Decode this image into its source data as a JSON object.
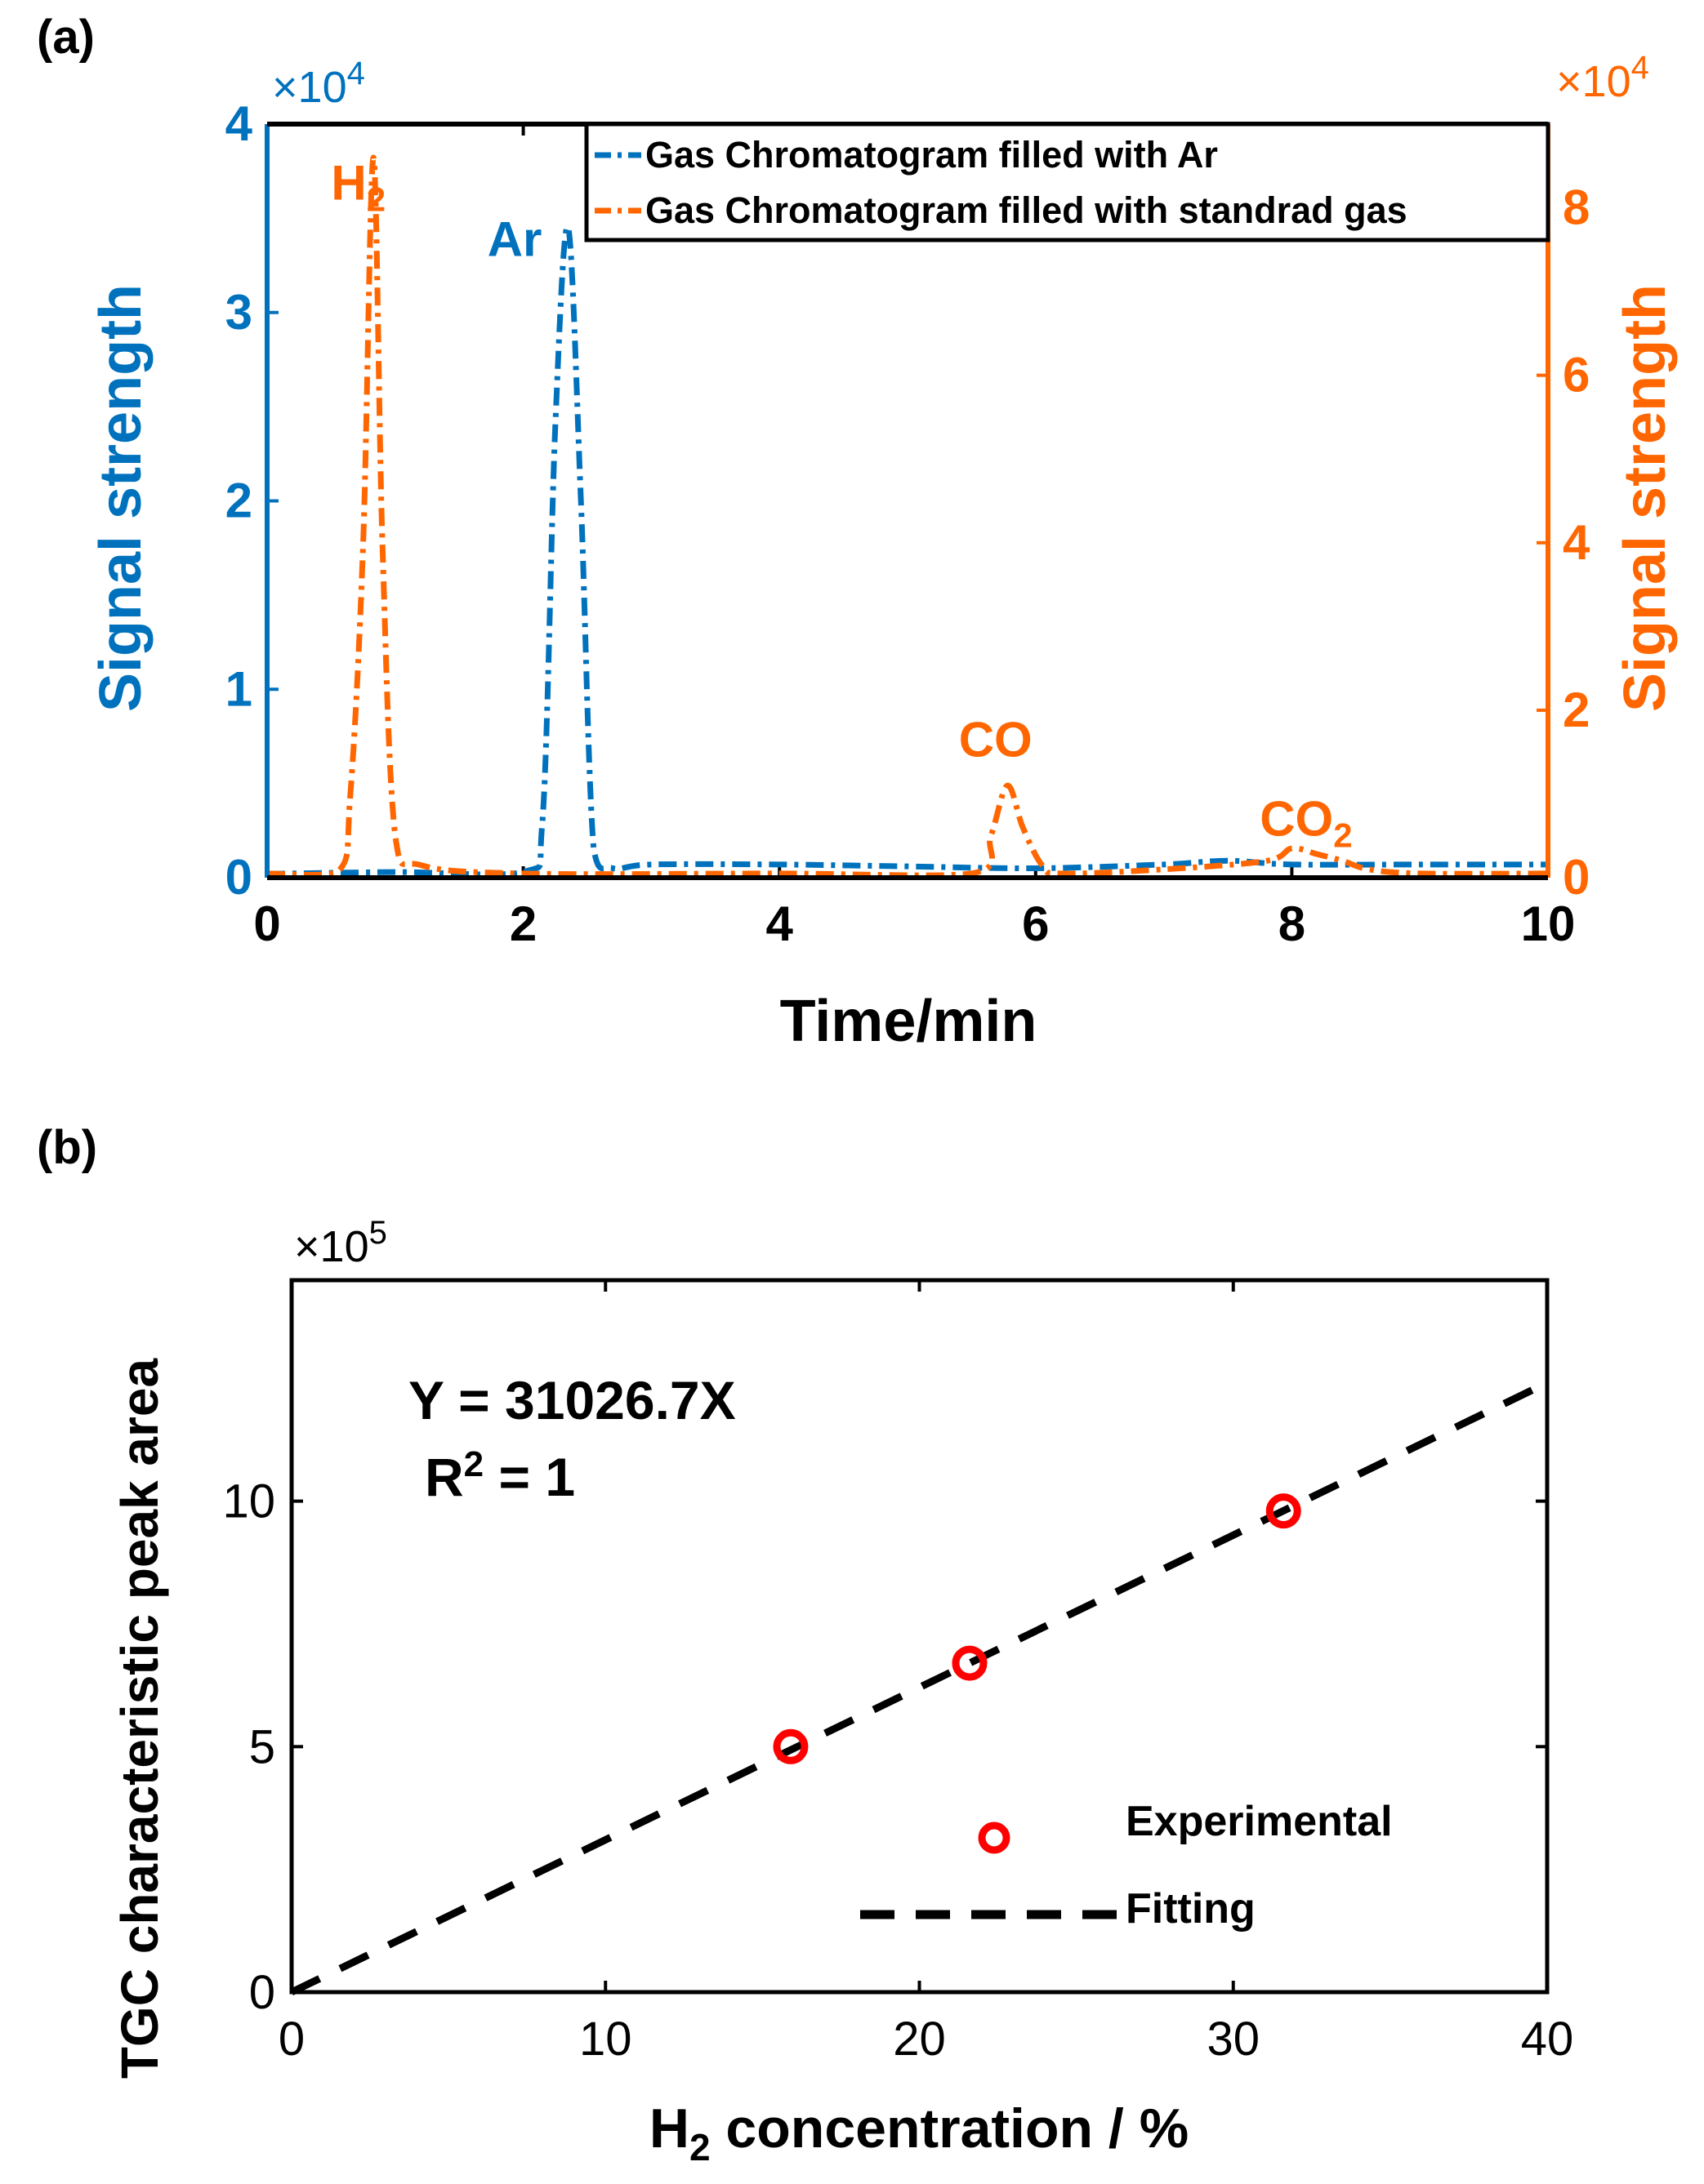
{
  "colors": {
    "blue": "#0072BD",
    "orange": "#FF6600",
    "black": "#000000",
    "red": "#FF0000"
  },
  "chart_data": [
    {
      "type": "line",
      "panel_label": "(a)",
      "xlabel": "Time/min",
      "ylabel_left": "Signal strength",
      "ylabel_right": "Signal strength",
      "x_range": [
        0,
        10
      ],
      "x_ticks": [
        0,
        2,
        4,
        6,
        8,
        10
      ],
      "y_left_range": [
        0,
        4
      ],
      "y_left_ticks": [
        0,
        1,
        2,
        3,
        4
      ],
      "y_left_multiplier": {
        "base": "×10",
        "exp": "4"
      },
      "y_right_range": [
        0,
        9
      ],
      "y_right_ticks": [
        0,
        2,
        4,
        6,
        8
      ],
      "y_right_multiplier": {
        "base": "×10",
        "exp": "4"
      },
      "legend": [
        "Gas Chromatogram filled with Ar",
        "Gas Chromatogram filled with standrad gas"
      ],
      "legend_position": "top-right",
      "series": [
        {
          "name": "Gas Chromatogram filled with Ar",
          "axis": "left",
          "color_key": "blue",
          "x": [
            0,
            1,
            2.0,
            2.15,
            2.25,
            2.35,
            2.45,
            2.55,
            2.7,
            3,
            4,
            5,
            6,
            7,
            7.5,
            8,
            9,
            10
          ],
          "y": [
            0.02,
            0.03,
            0.03,
            0.3,
            2.4,
            3.45,
            2.0,
            0.15,
            0.05,
            0.07,
            0.07,
            0.06,
            0.05,
            0.07,
            0.09,
            0.07,
            0.07,
            0.07
          ]
        },
        {
          "name": "Gas Chromatogram filled with standrad gas",
          "axis": "right",
          "color_key": "orange",
          "x": [
            0,
            0.55,
            0.65,
            0.75,
            0.83,
            0.9,
            1.0,
            1.2,
            2,
            4,
            5.5,
            5.65,
            5.78,
            5.9,
            6.05,
            6.2,
            7,
            7.8,
            8.0,
            8.2,
            8.4,
            8.6,
            9,
            10
          ],
          "y": [
            0.05,
            0.07,
            1.0,
            4.0,
            8.6,
            4.0,
            0.5,
            0.15,
            0.05,
            0.05,
            0.05,
            0.5,
            1.1,
            0.6,
            0.15,
            0.05,
            0.1,
            0.2,
            0.35,
            0.28,
            0.2,
            0.1,
            0.05,
            0.05
          ]
        }
      ],
      "annotations": [
        {
          "text": "H",
          "sub": "2",
          "color_key": "orange",
          "x": 0.5,
          "y_right": 8.1
        },
        {
          "text": "Ar",
          "sub": "",
          "color_key": "blue",
          "x": 1.72,
          "y_left": 3.3
        },
        {
          "text": "CO",
          "sub": "",
          "color_key": "orange",
          "x": 5.4,
          "y_right": 1.45
        },
        {
          "text": "CO",
          "sub": "2",
          "color_key": "orange",
          "x": 7.75,
          "y_right": 0.5
        }
      ]
    },
    {
      "type": "scatter",
      "panel_label": "(b)",
      "xlabel_main": "H",
      "xlabel_sub": "2",
      "xlabel_rest": " concentration / %",
      "ylabel": "TGC characteristic peak area",
      "x_range": [
        0,
        40
      ],
      "x_ticks": [
        0,
        10,
        20,
        30,
        40
      ],
      "y_range": [
        0,
        14.5
      ],
      "y_ticks": [
        0,
        5,
        10
      ],
      "y_multiplier": {
        "base": "×10",
        "exp": "5"
      },
      "equation": "Y = 31026.7X",
      "r2_prefix": "R",
      "r2_exp": "2",
      "r2_suffix": " = 1",
      "legend": [
        "Experimental",
        "Fitting"
      ],
      "legend_position": "bottom-right",
      "series": [
        {
          "name": "Experimental",
          "type": "scatter",
          "color_key": "red",
          "x": [
            15.9,
            21.6,
            31.6
          ],
          "y": [
            5.0,
            6.7,
            9.8
          ]
        },
        {
          "name": "Fitting",
          "type": "line",
          "color_key": "black",
          "slope": 31026.7,
          "x": [
            0,
            40
          ],
          "y": [
            0,
            12.41
          ]
        }
      ]
    }
  ]
}
